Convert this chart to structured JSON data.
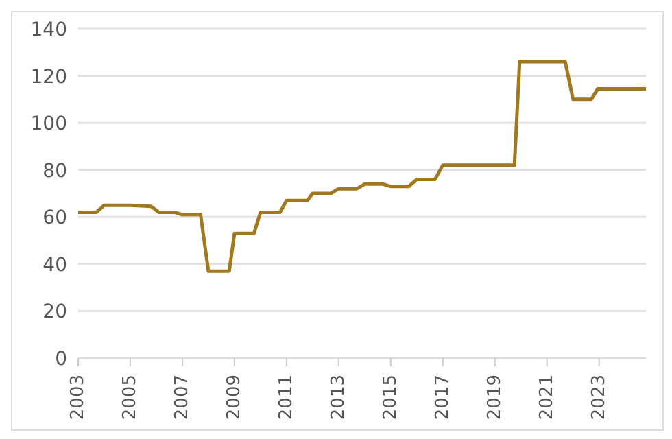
{
  "chart_data": {
    "type": "line",
    "x": [
      2003,
      2003.7,
      2004,
      2005,
      2005.8,
      2006.1,
      2006.7,
      2007,
      2007.7,
      2008,
      2008.8,
      2009,
      2009.75,
      2010,
      2010.75,
      2011,
      2011.8,
      2012,
      2012.7,
      2013,
      2013.7,
      2014,
      2014.7,
      2015,
      2015.7,
      2016,
      2016.7,
      2017,
      2019.75,
      2019.95,
      2021.7,
      2022,
      2022.7,
      2022.95,
      2024.8
    ],
    "series": [
      {
        "color": "#a07820",
        "values": [
          62,
          62,
          65,
          65,
          64.5,
          62,
          62,
          61,
          61,
          37,
          37,
          53,
          53,
          62,
          62,
          67,
          67,
          70,
          70,
          72,
          72,
          74,
          74,
          73,
          73,
          76,
          76,
          82,
          82,
          126,
          126,
          110,
          110,
          114.5,
          114.5
        ]
      }
    ],
    "xlim": [
      2003,
      2024.8
    ],
    "xticks": [
      2003,
      2005,
      2007,
      2009,
      2011,
      2013,
      2015,
      2017,
      2019,
      2021,
      2023
    ],
    "ylim": [
      0,
      140
    ],
    "yticks": [
      0,
      20,
      40,
      60,
      80,
      100,
      120,
      140
    ],
    "grid": "y",
    "marker": "none",
    "line_style": "solid"
  }
}
